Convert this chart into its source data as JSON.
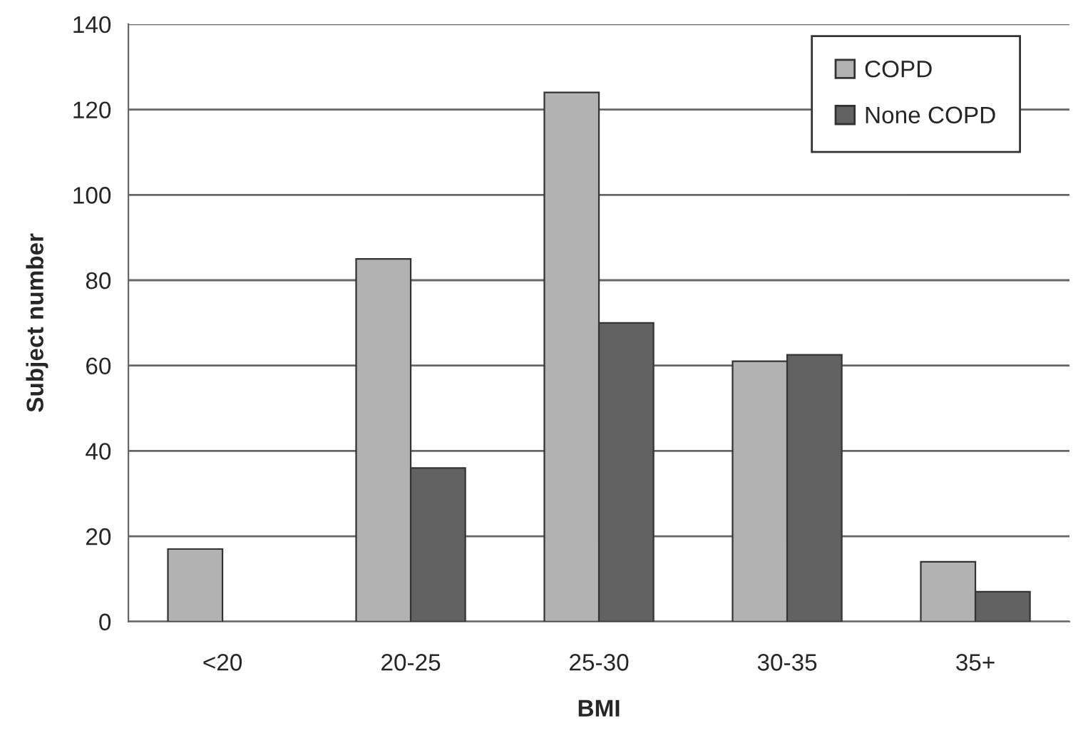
{
  "chart_data": {
    "type": "bar",
    "xlabel": "BMI",
    "ylabel": "Subject number",
    "categories": [
      "<20",
      "20-25",
      "25-30",
      "30-35",
      "35+"
    ],
    "series": [
      {
        "name": "COPD",
        "color": "#b2b2b2",
        "values": [
          17,
          85,
          124,
          61,
          14
        ]
      },
      {
        "name": "None COPD",
        "color": "#626262",
        "values": [
          null,
          36,
          70,
          62.5,
          7
        ]
      }
    ],
    "ylim": [
      0,
      140
    ],
    "yticks": [
      0,
      20,
      40,
      60,
      80,
      100,
      120,
      140
    ],
    "grid": "y",
    "legend": "top right"
  }
}
